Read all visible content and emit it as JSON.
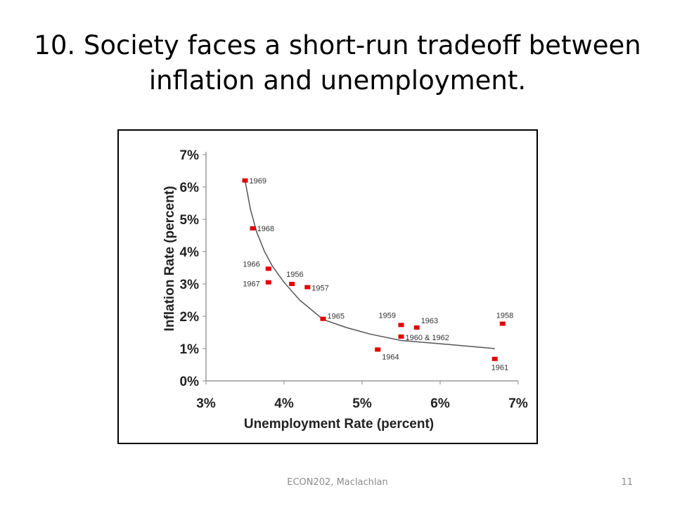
{
  "slide": {
    "title_line1": "10. Society faces a short-run tradeoff between",
    "title_line2": "inflation and unemployment.",
    "footer": "ECON202, Maclachlan",
    "page_number": "11"
  },
  "chart_data": {
    "type": "scatter",
    "title": "",
    "xlabel": "Unemployment Rate (percent)",
    "ylabel": "Inflation Rate (percent)",
    "xlim": [
      3,
      7
    ],
    "ylim": [
      0,
      7
    ],
    "x_ticks": [
      3,
      4,
      5,
      6,
      7
    ],
    "x_tick_labels": [
      "3%",
      "4%",
      "5%",
      "6%",
      "7%"
    ],
    "y_ticks": [
      0,
      1,
      2,
      3,
      4,
      5,
      6,
      7
    ],
    "y_tick_labels": [
      "0%",
      "1%",
      "2%",
      "3%",
      "4%",
      "5%",
      "6%",
      "7%"
    ],
    "grid": false,
    "marker_color": "#e00000",
    "curve_color": "#555555",
    "points": [
      {
        "x": 3.5,
        "y": 6.2,
        "label": "1969"
      },
      {
        "x": 3.6,
        "y": 4.72,
        "label": "1968"
      },
      {
        "x": 3.8,
        "y": 3.47,
        "label": "1966"
      },
      {
        "x": 3.8,
        "y": 3.05,
        "label": "1967"
      },
      {
        "x": 4.1,
        "y": 3.0,
        "label": "1956"
      },
      {
        "x": 4.3,
        "y": 2.9,
        "label": "1957"
      },
      {
        "x": 4.5,
        "y": 1.92,
        "label": "1965"
      },
      {
        "x": 5.5,
        "y": 1.73,
        "label": "1959"
      },
      {
        "x": 5.7,
        "y": 1.65,
        "label": "1963"
      },
      {
        "x": 5.5,
        "y": 1.37,
        "label": "1960 & 1962"
      },
      {
        "x": 5.2,
        "y": 0.97,
        "label": "1964"
      },
      {
        "x": 6.8,
        "y": 1.77,
        "label": "1958"
      },
      {
        "x": 6.7,
        "y": 0.68,
        "label": "1961"
      }
    ],
    "curve": {
      "x": [
        3.5,
        3.57,
        3.65,
        3.75,
        3.85,
        4.0,
        4.2,
        4.5,
        4.8,
        5.1,
        5.5,
        6.0,
        6.7
      ],
      "y": [
        6.2,
        5.3,
        4.6,
        4.0,
        3.55,
        3.05,
        2.5,
        1.9,
        1.65,
        1.45,
        1.25,
        1.15,
        1.0
      ]
    }
  }
}
